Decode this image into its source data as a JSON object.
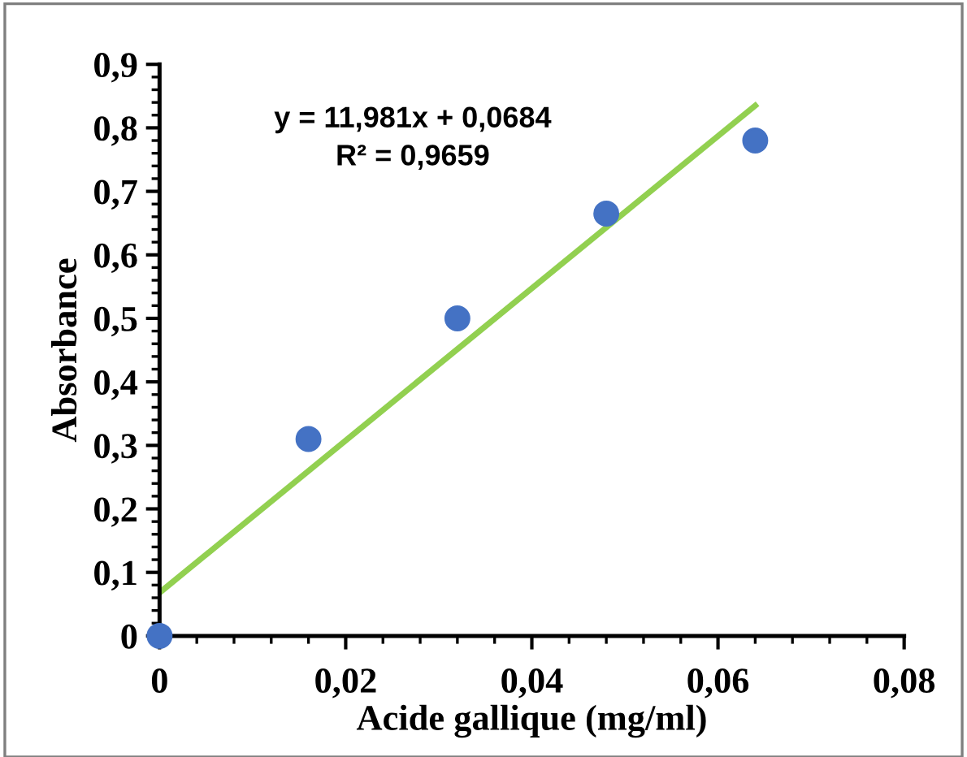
{
  "chart_data": {
    "type": "scatter",
    "xlabel": "Acide gallique (mg/ml)",
    "ylabel": "Absorbance",
    "x": [
      0,
      0.016,
      0.032,
      0.048,
      0.064
    ],
    "series": [
      {
        "color": "#4472c4",
        "values": [
          0,
          0.31,
          0.5,
          0.665,
          0.78
        ],
        "marker": "circle"
      },
      {
        "type": "line",
        "color": "#92d050",
        "x": [
          0,
          0.064
        ],
        "values": [
          0.068,
          0.835
        ],
        "line_style": "solid",
        "marker": "none"
      }
    ],
    "annotations": [
      "y = 11,981x + 0,0684\nR² = 0,9659"
    ],
    "xlim": [
      0,
      0.08
    ],
    "ylim": [
      0,
      0.9
    ],
    "xticks": [
      0,
      {
        "value": 0.02,
        "label": "0,02"
      },
      {
        "value": 0.04,
        "label": "0,04"
      },
      {
        "value": 0.06,
        "label": "0,06"
      },
      {
        "value": 0.08,
        "label": "0,08"
      }
    ],
    "yticks": [
      0,
      {
        "value": 0.1,
        "label": "0,1"
      },
      {
        "value": 0.2,
        "label": "0,2"
      },
      {
        "value": 0.3,
        "label": "0,3"
      },
      {
        "value": 0.4,
        "label": "0,4"
      },
      {
        "value": 0.5,
        "label": "0,5"
      },
      {
        "value": 0.6,
        "label": "0,6"
      },
      {
        "value": 0.7,
        "label": "0,7"
      },
      {
        "value": 0.8,
        "label": "0,8"
      },
      {
        "value": 0.9,
        "label": "0,9"
      }
    ],
    "grid": false,
    "legend": false
  }
}
